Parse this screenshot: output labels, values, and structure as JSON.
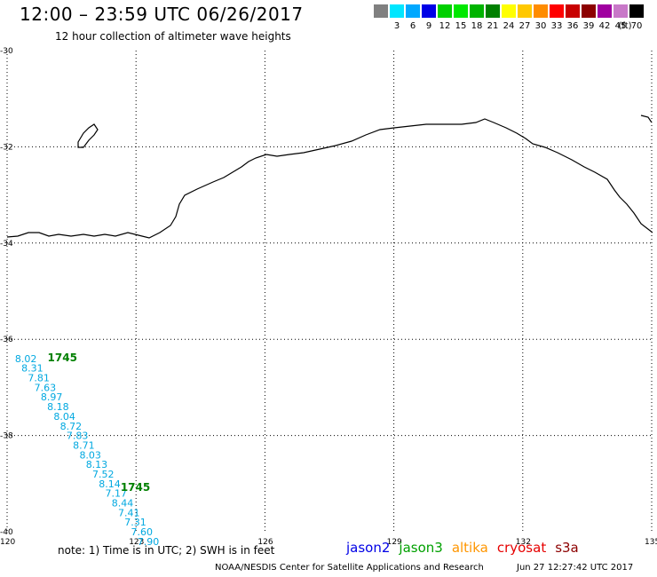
{
  "header": {
    "title": "12:00 – 23:59 UTC 06/26/2017",
    "subtitle": "12 hour collection of altimeter wave heights"
  },
  "scale": {
    "unit_label": "(ft)",
    "swatches": [
      {
        "label": "",
        "color": "#808080"
      },
      {
        "label": "3",
        "color": "#00e6ff"
      },
      {
        "label": "6",
        "color": "#00a8ff"
      },
      {
        "label": "9",
        "color": "#0000e6"
      },
      {
        "label": "12",
        "color": "#00d000"
      },
      {
        "label": "15",
        "color": "#00e800"
      },
      {
        "label": "18",
        "color": "#00b400"
      },
      {
        "label": "21",
        "color": "#008000"
      },
      {
        "label": "24",
        "color": "#ffff00"
      },
      {
        "label": "27",
        "color": "#ffc800"
      },
      {
        "label": "30",
        "color": "#ff8c00"
      },
      {
        "label": "33",
        "color": "#ff0000"
      },
      {
        "label": "36",
        "color": "#c80000"
      },
      {
        "label": "39",
        "color": "#8c0000"
      },
      {
        "label": "42",
        "color": "#a000a0"
      },
      {
        "label": "45",
        "color": "#c878c8"
      },
      {
        "label": "70",
        "color": "#000000"
      }
    ]
  },
  "map_data": {
    "lon_range": [
      120,
      135
    ],
    "lat_range": [
      -40,
      -30
    ],
    "lon_ticks": [
      "120",
      "123",
      "126",
      "129",
      "132",
      "135"
    ],
    "lat_ticks": [
      "-30",
      "-32",
      "-34",
      "-36",
      "-38",
      "-40"
    ],
    "grid": "dotted",
    "coastline_color": "#000000",
    "track_color": "#00a8e0",
    "pass_label_color": "#008000"
  },
  "passes": [
    {
      "time": "1745",
      "lon": 120.9,
      "lat": -36.38
    },
    {
      "time": "1745",
      "lon": 122.6,
      "lat": -39.08
    }
  ],
  "observations": [
    {
      "value": "8.02",
      "lon": 120.1,
      "lat": -36.4
    },
    {
      "value": "8.31",
      "lon": 120.25,
      "lat": -36.6
    },
    {
      "value": "7.81",
      "lon": 120.4,
      "lat": -36.8
    },
    {
      "value": "7.63",
      "lon": 120.55,
      "lat": -37.0
    },
    {
      "value": "8.97",
      "lon": 120.7,
      "lat": -37.2
    },
    {
      "value": "8.18",
      "lon": 120.85,
      "lat": -37.4
    },
    {
      "value": "8.04",
      "lon": 121.0,
      "lat": -37.6
    },
    {
      "value": "8.72",
      "lon": 121.15,
      "lat": -37.8
    },
    {
      "value": "7.83",
      "lon": 121.3,
      "lat": -38.0
    },
    {
      "value": "8.71",
      "lon": 121.45,
      "lat": -38.2
    },
    {
      "value": "8.03",
      "lon": 121.6,
      "lat": -38.4
    },
    {
      "value": "8.13",
      "lon": 121.75,
      "lat": -38.6
    },
    {
      "value": "7.52",
      "lon": 121.9,
      "lat": -38.8
    },
    {
      "value": "8.14",
      "lon": 122.05,
      "lat": -39.0
    },
    {
      "value": "7.17",
      "lon": 122.2,
      "lat": -39.2
    },
    {
      "value": "8.44",
      "lon": 122.35,
      "lat": -39.4
    },
    {
      "value": "7.41",
      "lon": 122.5,
      "lat": -39.6
    },
    {
      "value": "7.31",
      "lon": 122.65,
      "lat": -39.8
    },
    {
      "value": "7.60",
      "lon": 122.8,
      "lat": -40.0
    },
    {
      "value": "7.90",
      "lon": 122.95,
      "lat": -40.2
    }
  ],
  "footer": {
    "note": "note:  1) Time is in UTC;  2) SWH is in feet",
    "satellites": [
      {
        "name": "jason2",
        "color": "#0000e6"
      },
      {
        "name": "jason3",
        "color": "#00a000"
      },
      {
        "name": "altika",
        "color": "#ff9600"
      },
      {
        "name": "cryosat",
        "color": "#e60000"
      },
      {
        "name": "s3a",
        "color": "#8c0000"
      }
    ],
    "credit": "NOAA/NESDIS Center for Satellite Applications and Research",
    "timestamp": "Jun 27 12:27:42 UTC 2017"
  }
}
